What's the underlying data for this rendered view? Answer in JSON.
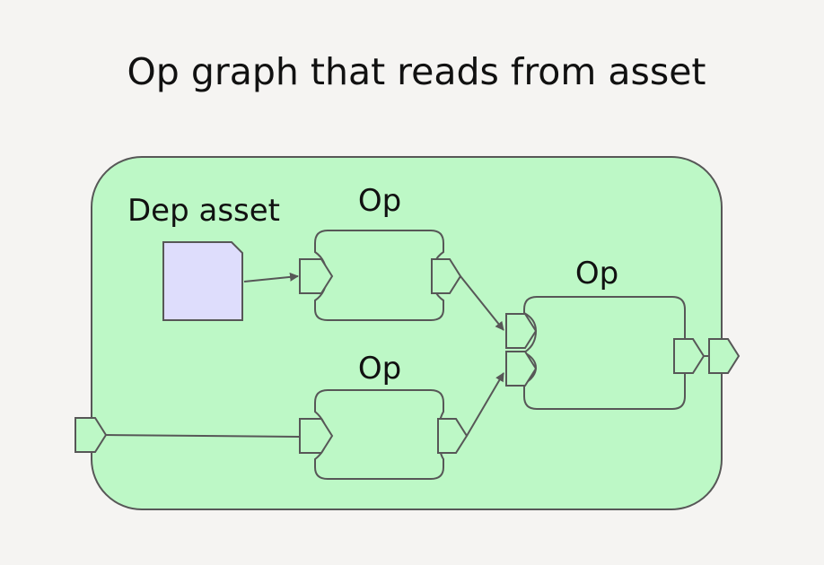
{
  "title": "Op graph that reads from asset",
  "colors": {
    "background": "#f5f4f2",
    "graph_fill": "#bdf8c6",
    "asset_fill": "#deddfc",
    "stroke": "#575757"
  },
  "asset": {
    "label": "Dep asset",
    "icon": "document-icon"
  },
  "ops": {
    "top": {
      "label": "Op"
    },
    "bottom": {
      "label": "Op"
    },
    "right": {
      "label": "Op"
    }
  },
  "edges": [
    {
      "from": "dep-asset",
      "to": "op-top.input"
    },
    {
      "from": "op-top.output",
      "to": "op-right.input-1"
    },
    {
      "from": "op-bottom.output",
      "to": "op-right.input-2"
    },
    {
      "from": "graph.input",
      "to": "op-bottom.input"
    },
    {
      "from": "op-right.output",
      "to": "graph.output"
    }
  ]
}
